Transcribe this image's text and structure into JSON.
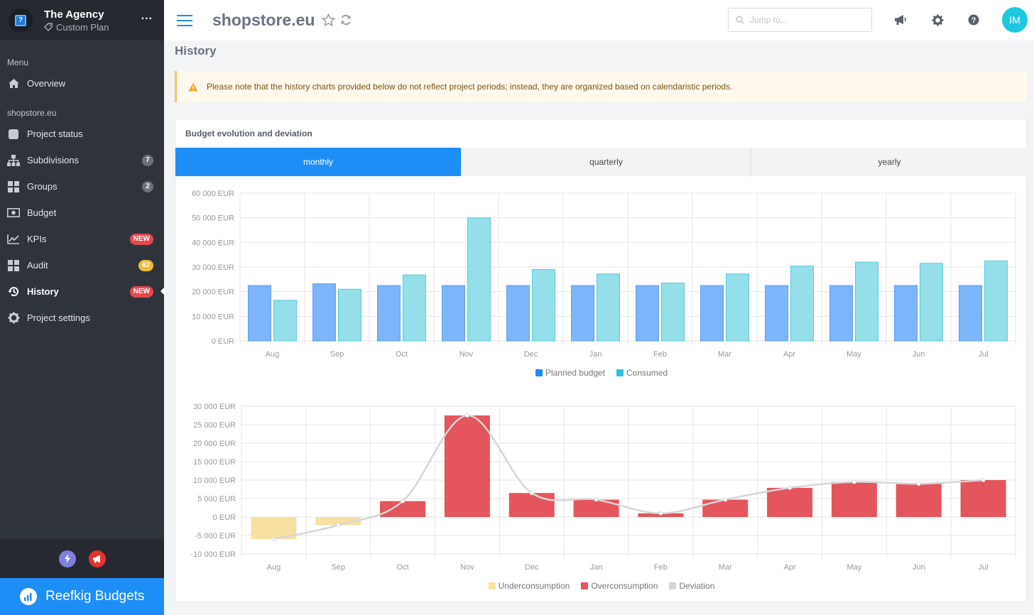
{
  "org": {
    "name": "The Agency",
    "plan": "Custom Plan",
    "menu_glyph": "..."
  },
  "sidebar": {
    "menu_label": "Menu",
    "overview_label": "Overview",
    "project_label": "shopstore.eu",
    "items": [
      {
        "label": "Project status"
      },
      {
        "label": "Subdivisions",
        "badge": "7"
      },
      {
        "label": "Groups",
        "badge": "2"
      },
      {
        "label": "Budget"
      },
      {
        "label": "KPIs",
        "badge": "NEW"
      },
      {
        "label": "Audit",
        "badge": "62"
      },
      {
        "label": "History",
        "badge": "NEW",
        "active": true
      },
      {
        "label": "Project settings"
      }
    ]
  },
  "brand": {
    "name": "Reefkig Budgets"
  },
  "header": {
    "site": "shopstore.eu",
    "search_placeholder": "Jump to...",
    "avatar_initials": "IM"
  },
  "page": {
    "title": "History",
    "notice": "Please note that the history charts provided below do not reflect project periods; instead, they are organized based on calendaristic periods."
  },
  "card": {
    "title": "Budget evolution and deviation",
    "tabs": [
      {
        "label": "monthly",
        "active": true
      },
      {
        "label": "quarterly"
      },
      {
        "label": "yearly"
      }
    ]
  },
  "colors": {
    "accent": "#1e8ef7",
    "planned": "#7db5fb",
    "consumed": "#94dfe9",
    "under": "#f8e0a0",
    "over": "#e5555d",
    "deviation": "#d6d6d6"
  },
  "chart_data": [
    {
      "type": "bar",
      "categories": [
        "Aug",
        "Sep",
        "Oct",
        "Nov",
        "Dec",
        "Jan",
        "Feb",
        "Mar",
        "Apr",
        "May",
        "Jun",
        "Jul"
      ],
      "ylim": [
        0,
        60000
      ],
      "yticks": [
        "0 EUR",
        "10 000 EUR",
        "20 000 EUR",
        "30 000 EUR",
        "40 000 EUR",
        "50 000 EUR",
        "60 000 EUR"
      ],
      "series": [
        {
          "name": "Planned budget",
          "values": [
            22500,
            23200,
            22500,
            22500,
            22500,
            22500,
            22500,
            22500,
            22500,
            22500,
            22500,
            22500
          ]
        },
        {
          "name": "Consumed",
          "values": [
            16500,
            21000,
            26800,
            50000,
            29000,
            27200,
            23500,
            27200,
            30400,
            32000,
            31500,
            32500
          ]
        }
      ],
      "legend": "bottom-center",
      "grid": true
    },
    {
      "type": "bar",
      "categories": [
        "Aug",
        "Sep",
        "Oct",
        "Nov",
        "Dec",
        "Jan",
        "Feb",
        "Mar",
        "Apr",
        "May",
        "Jun",
        "Jul"
      ],
      "ylim": [
        -10000,
        30000
      ],
      "yticks": [
        "-10 000 EUR",
        "-5 000 EUR",
        "0 EUR",
        "5 000 EUR",
        "10 000 EUR",
        "15 000 EUR",
        "20 000 EUR",
        "25 000 EUR",
        "30 000 EUR"
      ],
      "values": [
        -6000,
        -2200,
        4300,
        27500,
        6500,
        4700,
        1000,
        4700,
        7900,
        9500,
        9000,
        10000
      ],
      "series": [
        {
          "name": "Underconsumption"
        },
        {
          "name": "Overconsumption"
        },
        {
          "name": "Deviation"
        }
      ],
      "legend": "bottom-center",
      "grid": true
    }
  ]
}
